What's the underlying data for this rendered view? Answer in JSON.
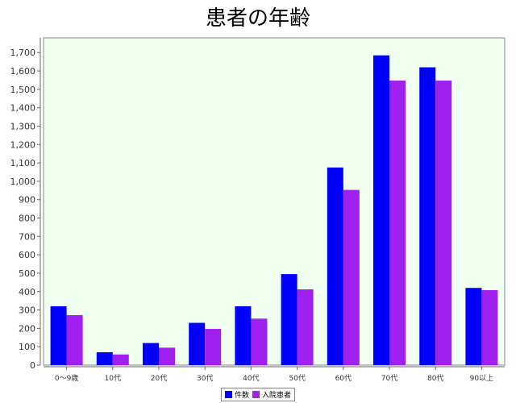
{
  "chart_data": {
    "type": "bar",
    "title": "患者の年齢",
    "categories": [
      "0〜9歳",
      "10代",
      "20代",
      "30代",
      "40代",
      "50代",
      "60代",
      "70代",
      "80代",
      "90以上"
    ],
    "series": [
      {
        "name": "件数",
        "color": "#0000ff",
        "values": [
          320,
          70,
          120,
          230,
          320,
          495,
          1075,
          1685,
          1620,
          420
        ]
      },
      {
        "name": "入院患者",
        "color": "#a020f0",
        "values": [
          272,
          58,
          95,
          197,
          253,
          412,
          953,
          1548,
          1548,
          408
        ]
      }
    ],
    "ylim": [
      0,
      1780
    ],
    "yticks": [
      0,
      100,
      200,
      300,
      400,
      500,
      600,
      700,
      800,
      900,
      1000,
      1100,
      1200,
      1300,
      1400,
      1500,
      1600,
      1700
    ],
    "ytick_labels": [
      "0",
      "100",
      "200",
      "300",
      "400",
      "500",
      "600",
      "700",
      "800",
      "900",
      "1,000",
      "1,100",
      "1,200",
      "1,300",
      "1,400",
      "1,500",
      "1,600",
      "1,700"
    ],
    "plot_background": "#f0fff0",
    "grid": false,
    "legend_position": "bottom"
  }
}
